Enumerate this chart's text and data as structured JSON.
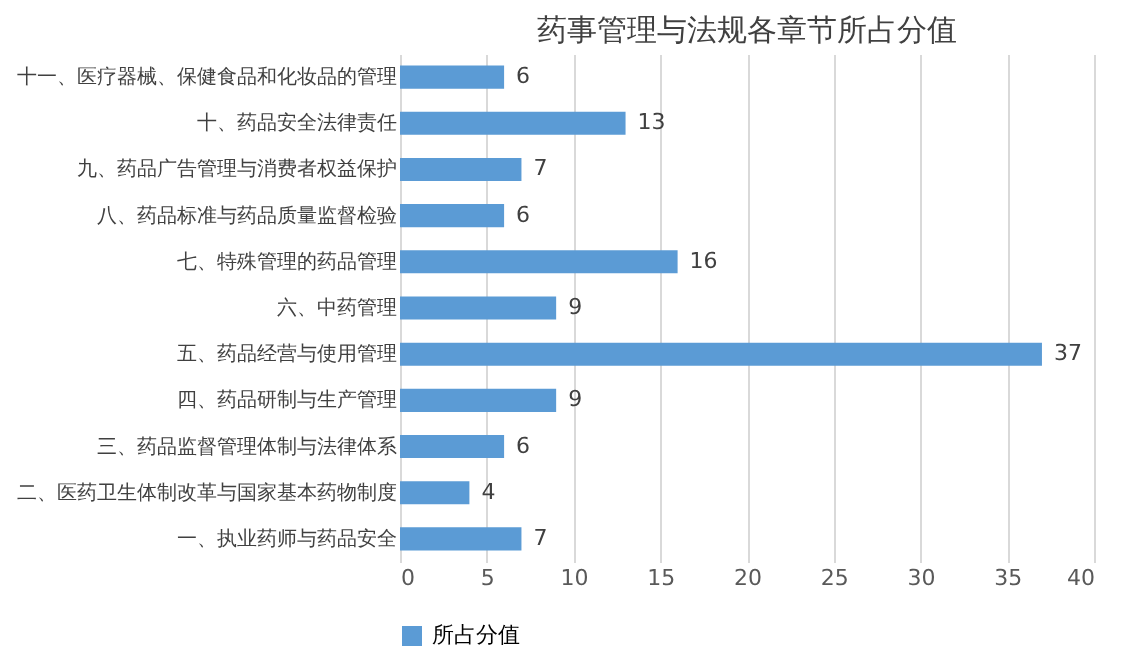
{
  "chart_data": {
    "type": "bar",
    "orientation": "horizontal",
    "title": "药事管理与法规各章节所占分值",
    "categories": [
      "十一、医疗器械、保健食品和化妆品的管理",
      "十、药品安全法律责任",
      "九、药品广告管理与消费者权益保护",
      "八、药品标准与药品质量监督检验",
      "七、特殊管理的药品管理",
      "六、中药管理",
      "五、药品经营与使用管理",
      "四、药品研制与生产管理",
      "三、药品监督管理体制与法律体系",
      "二、医药卫生体制改革与国家基本药物制度",
      "一、执业药师与药品安全"
    ],
    "series": [
      {
        "name": "所占分值",
        "color": "#5b9bd5",
        "values": [
          6,
          13,
          7,
          6,
          16,
          9,
          37,
          9,
          6,
          4,
          7
        ]
      }
    ],
    "xlim": [
      0,
      40
    ],
    "xticks": [
      0,
      5,
      10,
      15,
      20,
      25,
      30,
      35,
      40
    ],
    "grid": "x",
    "legend": "bottom",
    "data_labels": true
  }
}
